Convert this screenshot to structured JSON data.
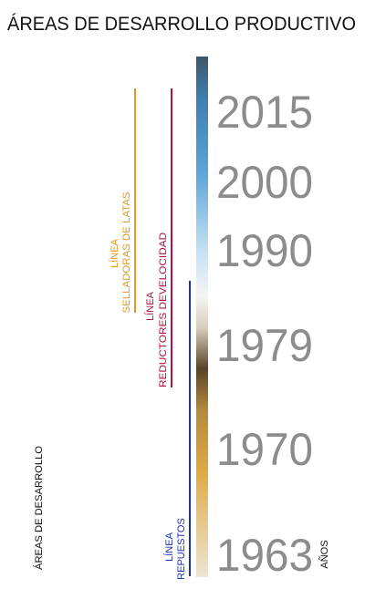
{
  "title": "ÁREAS DE DESARROLLO PRODUCTIVO",
  "years": [
    "2015",
    "2000",
    "1990",
    "1979",
    "1970",
    "1963"
  ],
  "lines": [
    {
      "label": "LÍNEA",
      "name": "SELLADORAS DE LATAS"
    },
    {
      "label": "LÍNEA",
      "name": "REDUCTORES DEVELOCIDAD"
    },
    {
      "label": "LÍNEA",
      "name": "REPUESTOS"
    }
  ],
  "left_label": "ÁREAS DE DESARROLLO",
  "axis_label": "AÑOS"
}
